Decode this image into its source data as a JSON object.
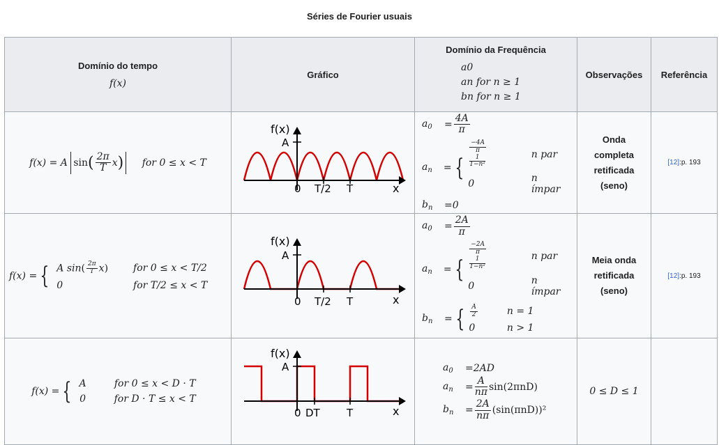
{
  "caption": "Séries de Fourier usuais",
  "headers": {
    "time_domain": "Domínio do tempo",
    "time_domain_fx": "f(x)",
    "graph": "Gráfico",
    "freq_domain": "Domínio da Frequência",
    "freq_a0": "a0",
    "freq_an": "an  for n ≥ 1",
    "freq_bn": "bn  for n ≥ 1",
    "observations": "Observações",
    "reference": "Referência"
  },
  "rows": [
    {
      "time": {
        "lhs": "f(x) = A",
        "arg_num": "2π",
        "arg_den": "T",
        "cond": "for 0 ≤ x < T"
      },
      "graph": {
        "ylabel": "f(x)",
        "a": "A",
        "x0": "0",
        "x1": "T/2",
        "x2": "T",
        "xlabel": "x"
      },
      "freq": {
        "a0_num": "4A",
        "a0_den": "π",
        "an_c1_num": "−4A",
        "an_c1_den": "π",
        "an_c1_num2": "1",
        "an_c1_den2": "1−n²",
        "an_c1_cond": "n par",
        "an_c2": "0",
        "an_c2_cond": "n ímpar",
        "bn": "=0"
      },
      "obs": [
        "Onda",
        "completa",
        "retificada",
        "(seno)"
      ],
      "ref": {
        "link": "[12]",
        "page": ":p. 193"
      }
    },
    {
      "time": {
        "lhs": "f(x) =",
        "c1_expr": "A sin",
        "arg_num": "2π",
        "arg_den": "T",
        "c1_cond": "for 0 ≤ x < T/2",
        "c2_expr": "0",
        "c2_cond": "for T/2 ≤ x < T"
      },
      "graph": {
        "ylabel": "f(x)",
        "a": "A",
        "x0": "0",
        "x1": "T/2",
        "x2": "T",
        "xlabel": "x"
      },
      "freq": {
        "a0_num": "2A",
        "a0_den": "π",
        "an_c1_num": "−2A",
        "an_c1_den": "π",
        "an_c1_num2": "1",
        "an_c1_den2": "1−n²",
        "an_c1_cond": "n par",
        "an_c2": "0",
        "an_c2_cond": "n ímpar",
        "bn_c1_num": "A",
        "bn_c1_den": "2",
        "bn_c1_cond": "n = 1",
        "bn_c2": "0",
        "bn_c2_cond": "n > 1"
      },
      "obs": [
        "Meia onda",
        "retificada",
        "(seno)"
      ],
      "ref": {
        "link": "[12]",
        "page": ":p. 193"
      }
    },
    {
      "time": {
        "lhs": "f(x) =",
        "c1_expr": "A",
        "c1_cond": "for 0 ≤ x < D · T",
        "c2_expr": "0",
        "c2_cond": "for D · T ≤ x < T"
      },
      "graph": {
        "ylabel": "f(x)",
        "a": "A",
        "x0": "0",
        "x1": "DT",
        "x2": "T",
        "xlabel": "x"
      },
      "freq": {
        "a0": "=2AD",
        "an_num": "A",
        "an_den": "nπ",
        "an_rest": "sin(2πnD)",
        "bn_num": "2A",
        "bn_den": "nπ",
        "bn_rest": "(sin(πnD))²"
      },
      "obs": [
        "0 ≤ D ≤ 1"
      ],
      "ref": {
        "link": "",
        "page": ""
      }
    }
  ]
}
